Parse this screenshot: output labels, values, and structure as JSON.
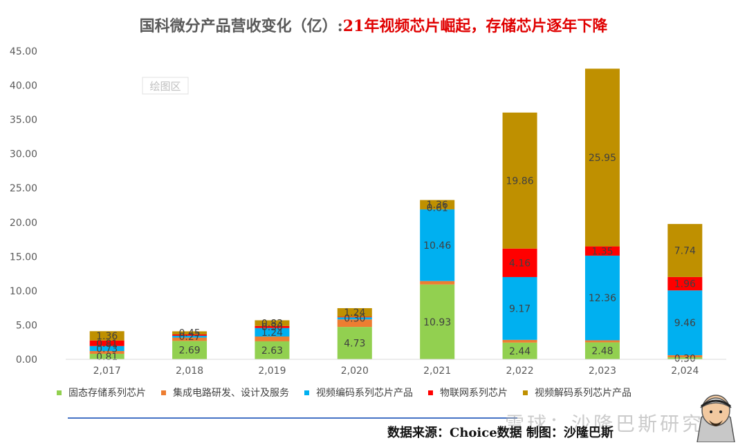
{
  "title_main": "国科微分产品营收变化（亿）:",
  "title_highlight": "21年视频芯片崛起，存储芯片逐年下降",
  "plot_area_label": "绘图区",
  "source_text": "数据来源：Choice数据    制图：沙隆巴斯",
  "watermark_text": "雪球：沙隆巴斯研究",
  "avatar_icon": "cartoon-avatar-icon",
  "chart_data": {
    "type": "bar",
    "stacked": true,
    "categories": [
      "2,017",
      "2,018",
      "2,019",
      "2,020",
      "2,021",
      "2,022",
      "2,023",
      "2,024"
    ],
    "ylim": [
      0,
      45
    ],
    "yticks": [
      "0.00",
      "5.00",
      "10.00",
      "15.00",
      "20.00",
      "25.00",
      "30.00",
      "35.00",
      "40.00",
      "45.00"
    ],
    "legend_position": "bottom",
    "grid": false,
    "series": [
      {
        "name": "固态存储系列芯片",
        "color": "#92d050",
        "values": [
          0.81,
          2.69,
          2.63,
          4.73,
          10.93,
          2.44,
          2.48,
          0.3
        ],
        "labels": [
          "0.81",
          "2.69",
          "2.63",
          "4.73",
          "10.93",
          "2.44",
          "2.48",
          "0.30"
        ]
      },
      {
        "name": "集成电路研发、设计及服务",
        "color": "#ed7d31",
        "values": [
          0.4,
          0.48,
          0.7,
          1.1,
          0.5,
          0.4,
          0.3,
          0.3
        ],
        "labels": [
          "",
          "",
          "",
          "",
          "",
          "",
          "",
          ""
        ]
      },
      {
        "name": "视频编码系列芯片产品",
        "color": "#00b0f0",
        "values": [
          0.73,
          0.27,
          1.24,
          0.3,
          10.46,
          9.17,
          12.36,
          9.46
        ],
        "labels": [
          "0.73",
          "0.27",
          "1.24",
          "0.30",
          "10.46",
          "9.17",
          "12.36",
          "9.46"
        ]
      },
      {
        "name": "物联网系列芯片",
        "color": "#ff0000",
        "values": [
          0.81,
          0.2,
          0.3,
          0.1,
          0.01,
          4.16,
          1.35,
          1.96
        ],
        "labels": [
          "0.81",
          "",
          "0.30",
          "",
          "",
          "4.16",
          "1.35",
          "1.96"
        ]
      },
      {
        "name": "视频解码系列芯片产品",
        "color": "#bf9000",
        "values": [
          1.36,
          0.45,
          0.83,
          1.24,
          1.36,
          19.86,
          25.95,
          7.74
        ],
        "labels": [
          "1.36",
          "0.45",
          "0.83",
          "1.24",
          "1.36",
          "19.86",
          "25.95",
          "7.74"
        ]
      }
    ],
    "extra_labels": [
      {
        "category": "2,021",
        "text": "0.61",
        "at_value": 22.15
      }
    ]
  }
}
